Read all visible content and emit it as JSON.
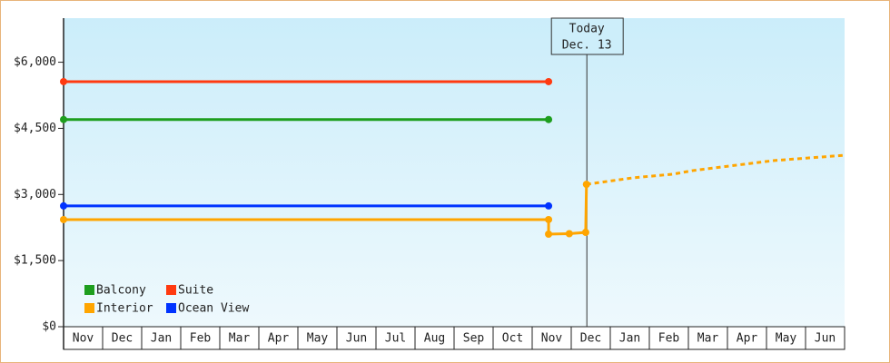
{
  "chart_data": {
    "type": "line",
    "categories": [
      "Nov",
      "Dec",
      "Jan",
      "Feb",
      "Mar",
      "Apr",
      "May",
      "Jun",
      "Jul",
      "Aug",
      "Sep",
      "Oct",
      "Nov",
      "Dec",
      "Jan",
      "Feb",
      "Mar",
      "Apr",
      "May",
      "Jun"
    ],
    "xlim": [
      0,
      20
    ],
    "ylim": [
      0,
      7000
    ],
    "yticks": [
      {
        "value": 0,
        "label": "$0"
      },
      {
        "value": 1500,
        "label": "$1,500"
      },
      {
        "value": 3000,
        "label": "$3,000"
      },
      {
        "value": 4500,
        "label": "$4,500"
      },
      {
        "value": 6000,
        "label": "$6,000"
      }
    ],
    "series": [
      {
        "name": "Balcony",
        "color": "#1e9e1e",
        "x": [
          0,
          12.42
        ],
        "values": [
          4700,
          4700
        ]
      },
      {
        "name": "Suite",
        "color": "#ff3a10",
        "x": [
          0,
          12.42
        ],
        "values": [
          5560,
          5560
        ]
      },
      {
        "name": "Interior",
        "color": "#ffa500",
        "x": [
          0,
          12.42,
          12.42,
          12.95,
          13.37,
          13.39
        ],
        "values": [
          2430,
          2430,
          2100,
          2110,
          2140,
          3230
        ],
        "forecast": {
          "x": [
            13.39,
            14.6,
            15.6,
            16.1,
            17.0,
            18.2,
            20
          ],
          "values": [
            3230,
            3380,
            3460,
            3540,
            3640,
            3770,
            3890
          ]
        }
      },
      {
        "name": "Ocean View",
        "color": "#0033ff",
        "x": [
          0,
          12.42
        ],
        "values": [
          2740,
          2740
        ]
      }
    ],
    "today": {
      "x": 13.4,
      "label": [
        "Today",
        "Dec. 13"
      ]
    }
  }
}
